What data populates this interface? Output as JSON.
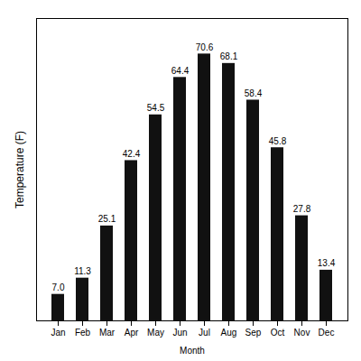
{
  "chart_data": {
    "type": "bar",
    "categories": [
      "Jan",
      "Feb",
      "Mar",
      "Apr",
      "May",
      "Jun",
      "Jul",
      "Aug",
      "Sep",
      "Oct",
      "Nov",
      "Dec"
    ],
    "values": [
      7.0,
      11.3,
      25.1,
      42.4,
      54.5,
      64.4,
      70.6,
      68.1,
      58.4,
      45.8,
      27.8,
      13.4
    ],
    "value_labels": [
      "7.0",
      "11.3",
      "25.1",
      "42.4",
      "54.5",
      "64.4",
      "70.6",
      "68.1",
      "58.4",
      "45.8",
      "27.8",
      "13.4"
    ],
    "data_labels": true,
    "color": "#111111",
    "xlabel": "Month",
    "ylabel": "Temperature (F)",
    "ylim": [
      0,
      80
    ],
    "tick_labels": "x",
    "grid": false
  }
}
